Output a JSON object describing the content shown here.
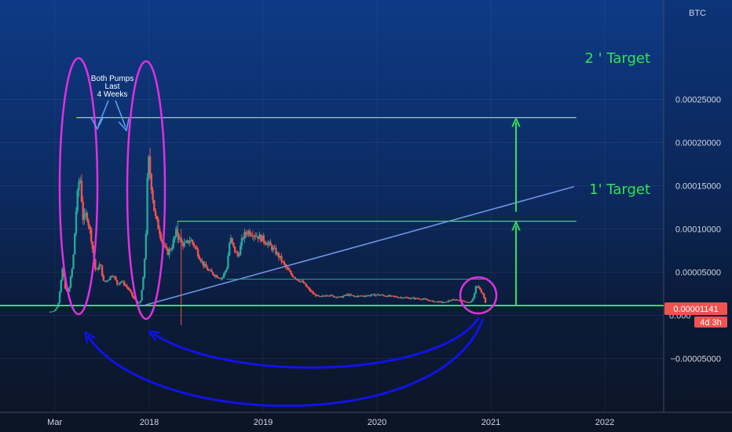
{
  "chart_data": {
    "type": "candlestick",
    "currency_label": "BTC",
    "y_ticks": [
      {
        "value": 0.00025,
        "label": "0.00025000"
      },
      {
        "value": 0.0002,
        "label": "0.00020000"
      },
      {
        "value": 0.00015,
        "label": "0.00015000"
      },
      {
        "value": 0.0001,
        "label": "0.00010000"
      },
      {
        "value": 5e-05,
        "label": "0.00005000"
      },
      {
        "value": 0.0,
        "label": "0.000"
      },
      {
        "value": -5e-05,
        "label": "−0.00005000"
      }
    ],
    "x_ticks": [
      {
        "t": 2017.17,
        "label": "Mar"
      },
      {
        "t": 2018.0,
        "label": "2018"
      },
      {
        "t": 2019.0,
        "label": "2019"
      },
      {
        "t": 2020.0,
        "label": "2020"
      },
      {
        "t": 2021.0,
        "label": "2021"
      },
      {
        "t": 2022.0,
        "label": "2022"
      }
    ],
    "current_price": {
      "value": 1.141e-05,
      "label": "0.00001141",
      "countdown": "4d 3h"
    },
    "support_level": 1.14e-05,
    "targets": [
      {
        "label": "1' Target",
        "value": 0.000109,
        "t_start": 2018.25,
        "t_end": 2021.75
      },
      {
        "label": "2 ' Target",
        "value": 0.000229,
        "t_start": 2017.36,
        "t_end": 2021.75
      }
    ],
    "annotation": "Both Pumps\nLast\n4 Weeks",
    "price_path": [
      [
        2017.13,
        4.2e-06
      ],
      [
        2017.17,
        5.5e-06
      ],
      [
        2017.2,
        1.2e-05
      ],
      [
        2017.24,
        5.8e-05
      ],
      [
        2017.26,
        3e-05
      ],
      [
        2017.29,
        2.6e-05
      ],
      [
        2017.33,
        6e-05
      ],
      [
        2017.36,
        0.000125
      ],
      [
        2017.39,
        0.000165
      ],
      [
        2017.42,
        0.00011
      ],
      [
        2017.45,
        0.000118
      ],
      [
        2017.49,
        9e-05
      ],
      [
        2017.53,
        5e-05
      ],
      [
        2017.57,
        6e-05
      ],
      [
        2017.6,
        3.8e-05
      ],
      [
        2017.64,
        4.2e-05
      ],
      [
        2017.68,
        4.8e-05
      ],
      [
        2017.72,
        3.6e-05
      ],
      [
        2017.75,
        4e-05
      ],
      [
        2017.79,
        3.5e-05
      ],
      [
        2017.83,
        2.8e-05
      ],
      [
        2017.86,
        2e-05
      ],
      [
        2017.89,
        1.6e-05
      ],
      [
        2017.92,
        1.3e-05
      ],
      [
        2017.95,
        4.5e-05
      ],
      [
        2017.97,
        9e-05
      ],
      [
        2017.99,
        0.000185
      ],
      [
        2018.02,
        0.00015
      ],
      [
        2018.05,
        0.000115
      ],
      [
        2018.09,
        9.8e-05
      ],
      [
        2018.12,
        8.2e-05
      ],
      [
        2018.16,
        7.2e-05
      ],
      [
        2018.2,
        8e-05
      ],
      [
        2018.24,
        9.8e-05
      ],
      [
        2018.28,
        8.35e-05
      ],
      [
        2018.32,
        8.2e-05
      ],
      [
        2018.36,
        8.8e-05
      ],
      [
        2018.4,
        8e-05
      ],
      [
        2018.44,
        6.8e-05
      ],
      [
        2018.48,
        5.8e-05
      ],
      [
        2018.52,
        5.2e-05
      ],
      [
        2018.56,
        4.8e-05
      ],
      [
        2018.6,
        4.5e-05
      ],
      [
        2018.64,
        4.3e-05
      ],
      [
        2018.68,
        5.5e-05
      ],
      [
        2018.71,
        9e-05
      ],
      [
        2018.74,
        7.8e-05
      ],
      [
        2018.78,
        6.8e-05
      ],
      [
        2018.82,
        9e-05
      ],
      [
        2018.86,
        9.7e-05
      ],
      [
        2018.9,
        9.6e-05
      ],
      [
        2018.95,
        9.2e-05
      ],
      [
        2019.0,
        8.8e-05
      ],
      [
        2019.05,
        8.2e-05
      ],
      [
        2019.1,
        7.5e-05
      ],
      [
        2019.15,
        6.6e-05
      ],
      [
        2019.2,
        5.5e-05
      ],
      [
        2019.25,
        4.7e-05
      ],
      [
        2019.3,
        4.2e-05
      ],
      [
        2019.35,
        3.8e-05
      ],
      [
        2019.4,
        3e-05
      ],
      [
        2019.45,
        2.4e-05
      ],
      [
        2019.5,
        2.1e-05
      ],
      [
        2019.56,
        2.4e-05
      ],
      [
        2019.62,
        2.2e-05
      ],
      [
        2019.68,
        2.1e-05
      ],
      [
        2019.74,
        2.4e-05
      ],
      [
        2019.8,
        2.2e-05
      ],
      [
        2019.86,
        2.25e-05
      ],
      [
        2019.92,
        2.3e-05
      ],
      [
        2020.0,
        2.4e-05
      ],
      [
        2020.06,
        2.3e-05
      ],
      [
        2020.12,
        2.2e-05
      ],
      [
        2020.2,
        2.1e-05
      ],
      [
        2020.3,
        2e-05
      ],
      [
        2020.4,
        1.9e-05
      ],
      [
        2020.5,
        1.6e-05
      ],
      [
        2020.6,
        1.5e-05
      ],
      [
        2020.64,
        1.75e-05
      ],
      [
        2020.7,
        1.8e-05
      ],
      [
        2020.76,
        1.7e-05
      ],
      [
        2020.8,
        1.45e-05
      ],
      [
        2020.84,
        1.7e-05
      ],
      [
        2020.87,
        3.5e-05
      ],
      [
        2020.9,
        3e-05
      ],
      [
        2020.93,
        2.4e-05
      ],
      [
        2020.96,
        1.14e-05
      ]
    ]
  }
}
